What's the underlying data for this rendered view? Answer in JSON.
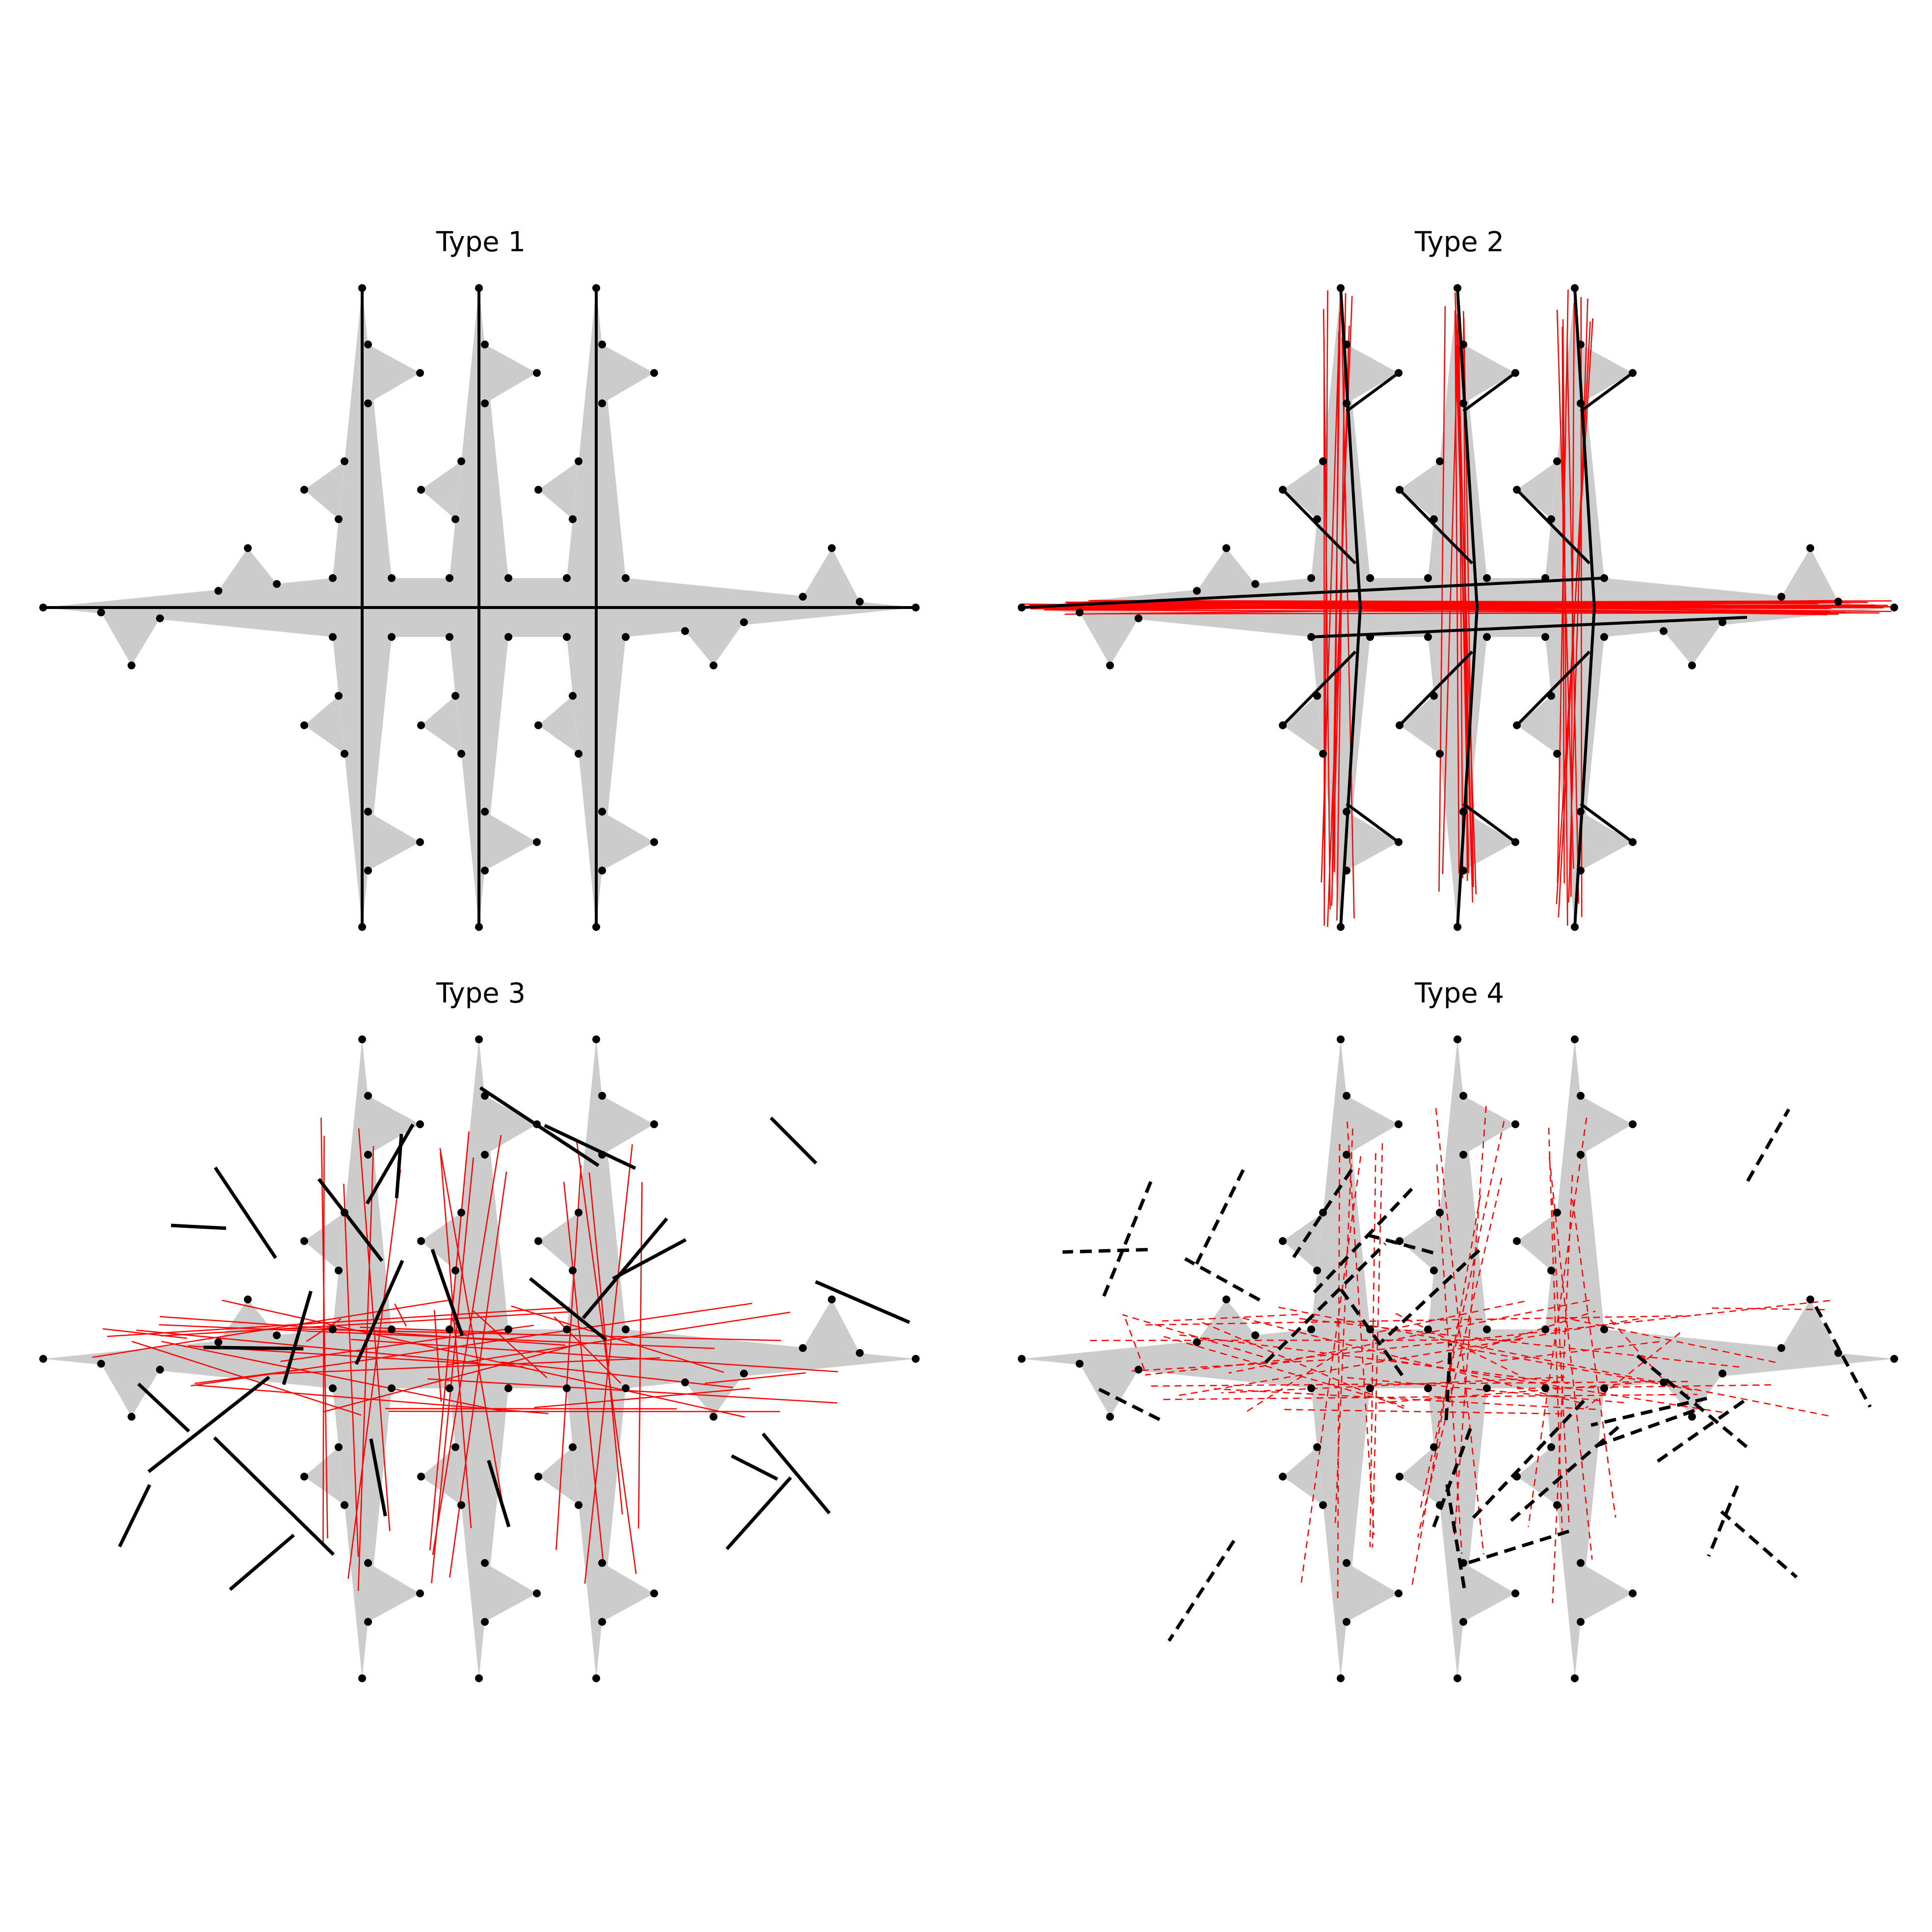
{
  "figure": {
    "panels": [
      {
        "id": "type1",
        "title": "Type 1",
        "overlay": "none"
      },
      {
        "id": "type2",
        "title": "Type 2",
        "overlay": "outline"
      },
      {
        "id": "type3",
        "title": "Type 3",
        "overlay": "crossing"
      },
      {
        "id": "type4",
        "title": "Type 4",
        "overlay": "dashed"
      }
    ]
  },
  "colors": {
    "shape_fill": "#cccccc",
    "edge_black": "#000000",
    "edge_red": "#ff0000",
    "vertex": "#000000",
    "background": "#ffffff"
  }
}
